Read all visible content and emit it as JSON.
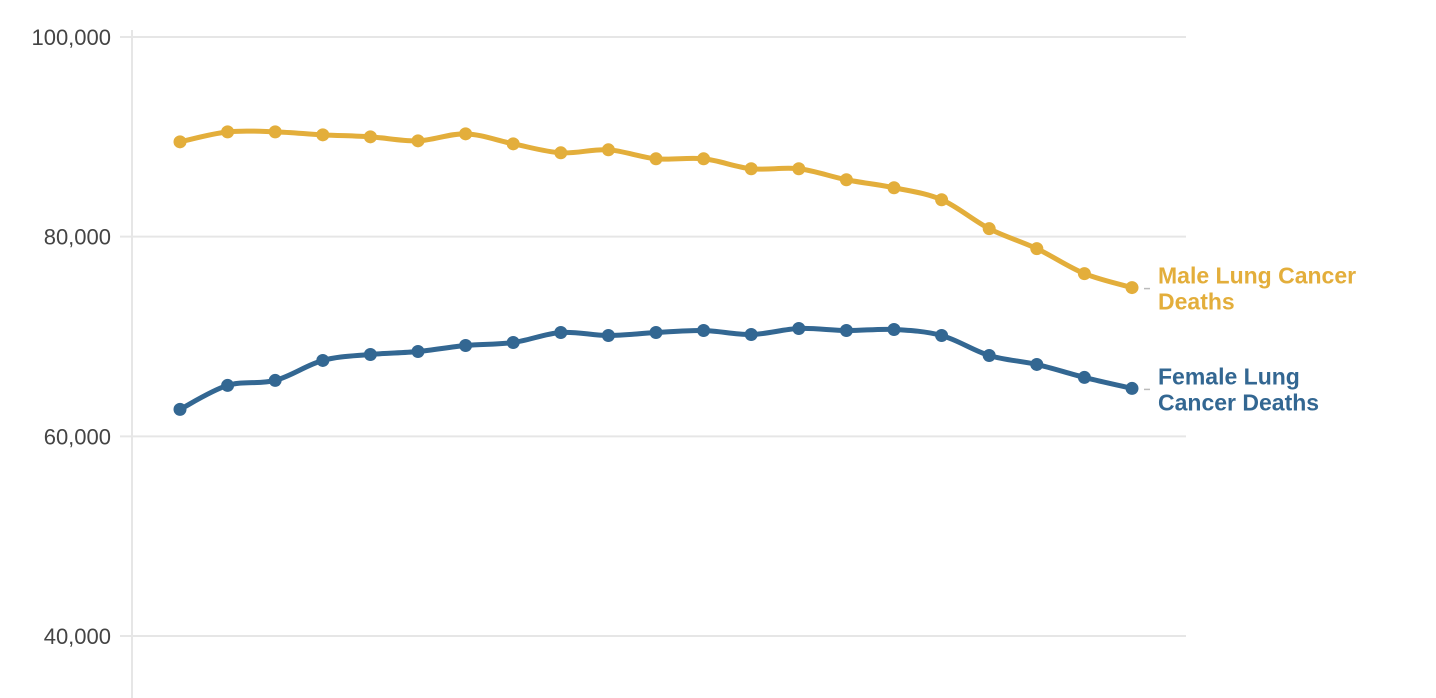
{
  "chart_data": {
    "type": "line",
    "title": "",
    "xlabel": "",
    "ylabel": "",
    "ylim": [
      40000,
      100000
    ],
    "yticks": [
      {
        "value": 40000,
        "label": "40,000"
      },
      {
        "value": 60000,
        "label": "60,000"
      },
      {
        "value": 80000,
        "label": "80,000"
      },
      {
        "value": 100000,
        "label": "100,000"
      }
    ],
    "grid": true,
    "legend": "inline-right",
    "series": [
      {
        "name_lines": [
          "Male Lung Cancer",
          "Deaths"
        ],
        "color": "#E3AE3B",
        "values": [
          89500,
          90500,
          90500,
          90200,
          90000,
          89600,
          90300,
          89300,
          88400,
          88700,
          87800,
          87800,
          86800,
          86800,
          85700,
          84900,
          83700,
          80800,
          78800,
          76300,
          74900
        ]
      },
      {
        "name_lines": [
          "Female Lung",
          "Cancer Deaths"
        ],
        "color": "#336792",
        "values": [
          62700,
          65100,
          65600,
          67600,
          68200,
          68500,
          69100,
          69400,
          70400,
          70100,
          70400,
          70600,
          70200,
          70800,
          70600,
          70700,
          70100,
          68100,
          67200,
          65900,
          64800
        ]
      }
    ]
  }
}
